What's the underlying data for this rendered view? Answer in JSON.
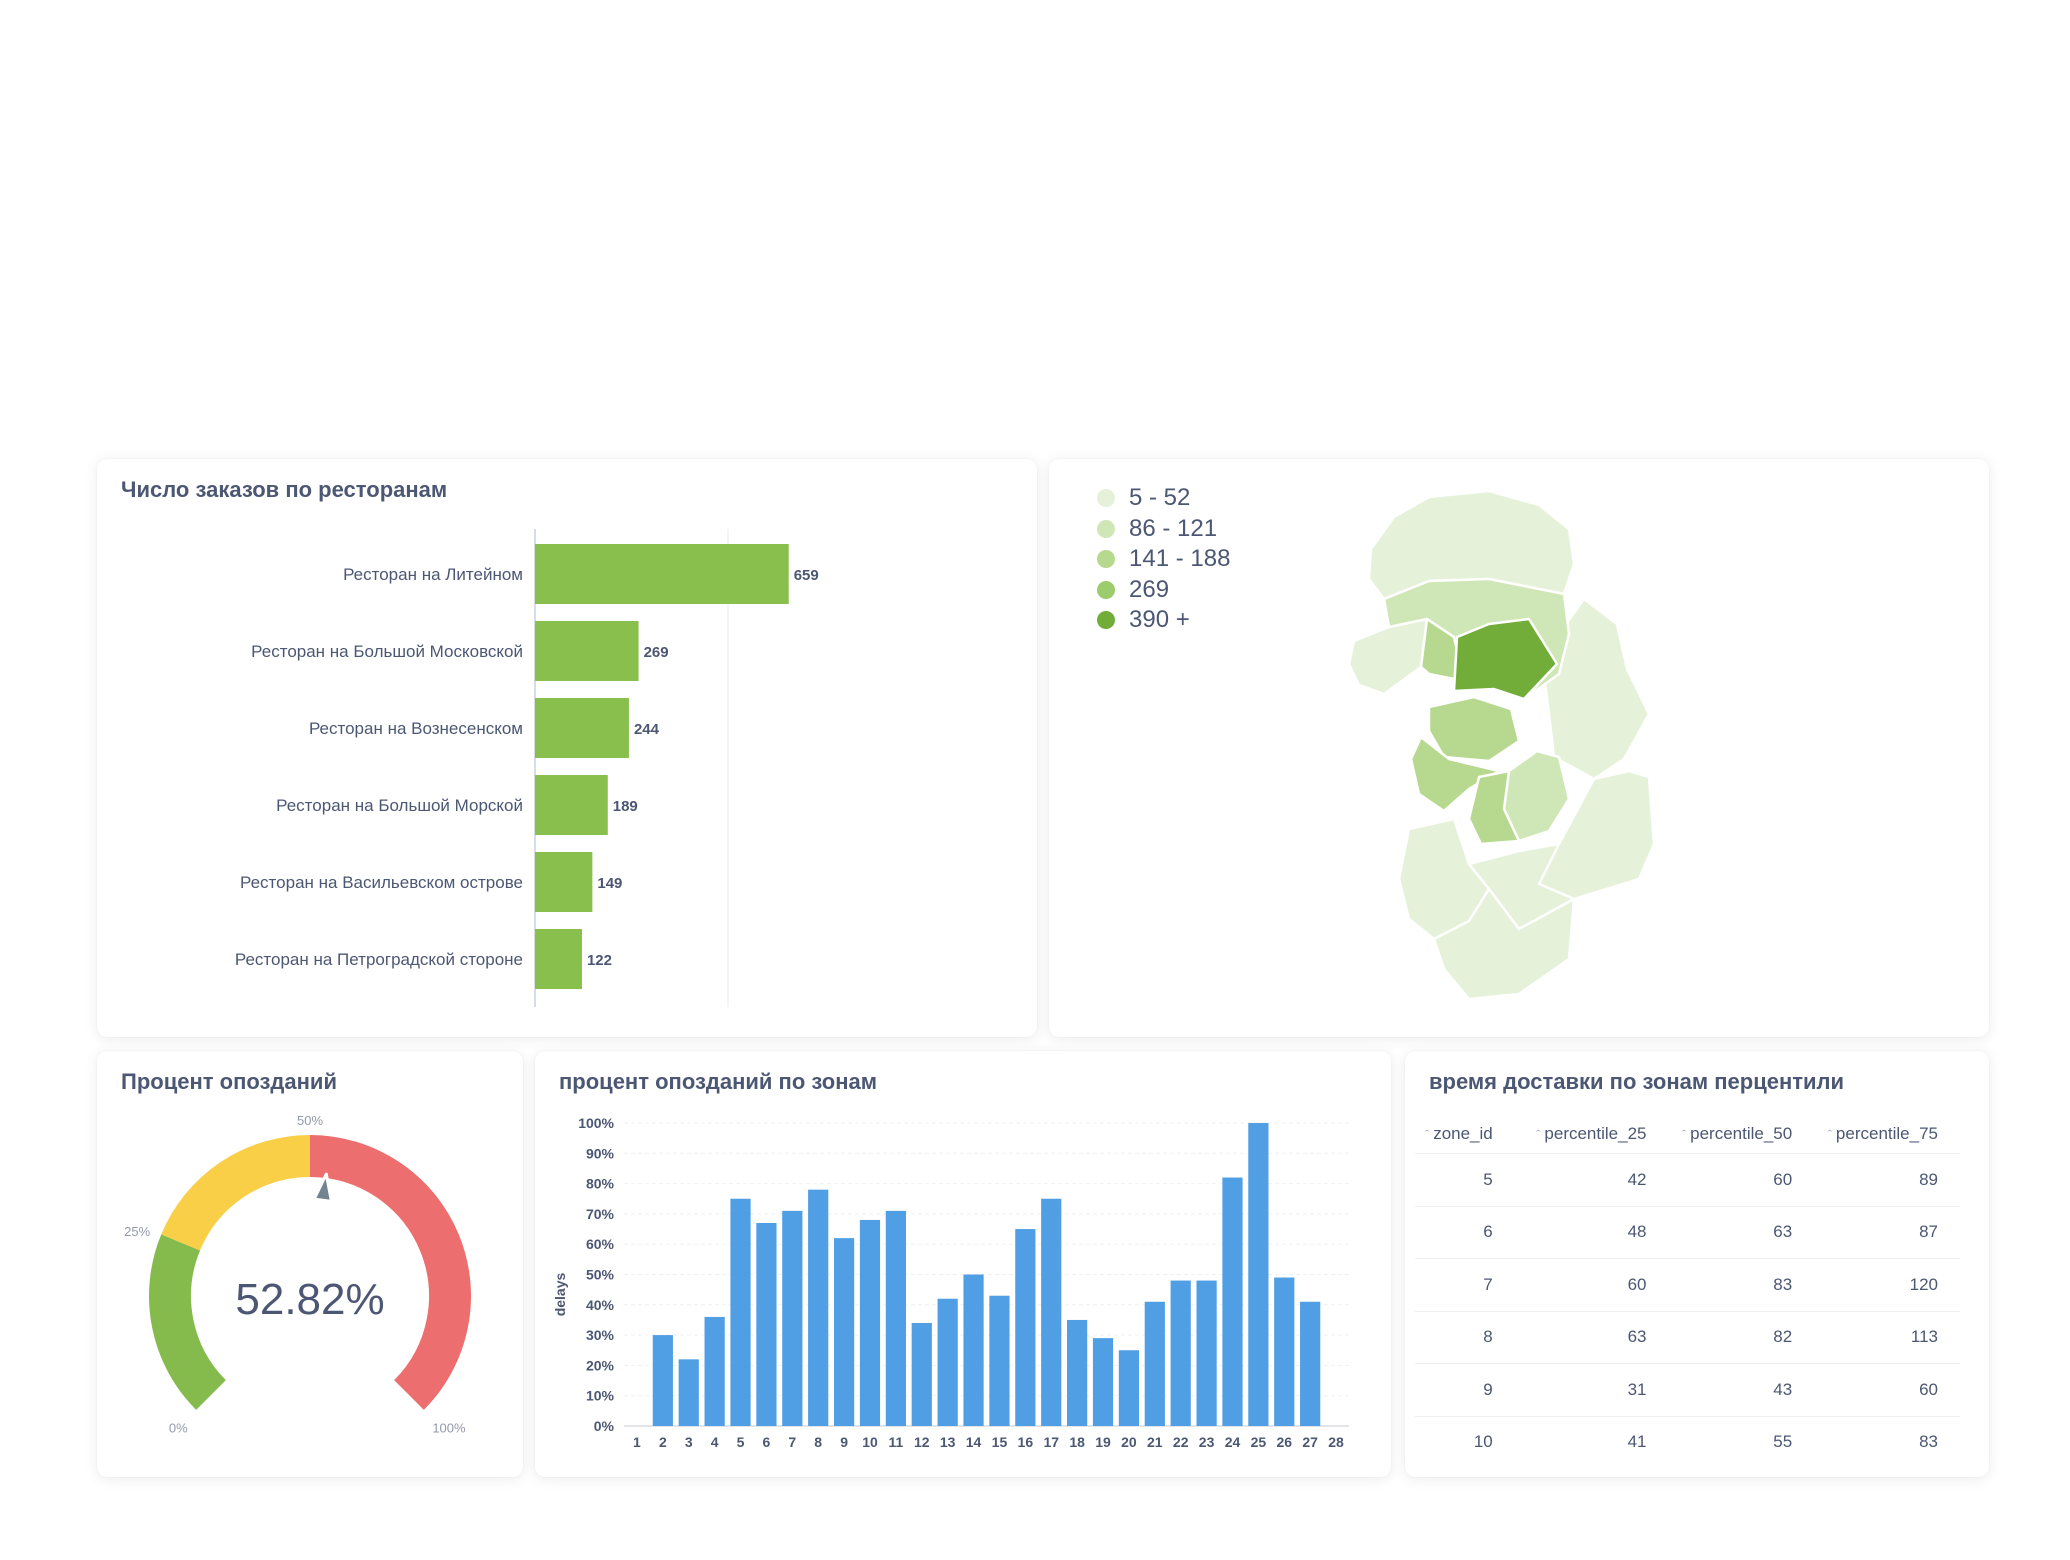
{
  "orders_card": {
    "title": "Число заказов по ресторанам",
    "bar_color": "#88bf4d",
    "chart_data": {
      "type": "bar",
      "orientation": "horizontal",
      "categories": [
        "Ресторан на Литейном",
        "Ресторан на Большой Московской",
        "Ресторан на Вознесенском",
        "Ресторан на Большой Морской",
        "Ресторан на Васильевском острове",
        "Ресторан на Петроградской стороне"
      ],
      "values": [
        659,
        269,
        244,
        189,
        149,
        122
      ],
      "xlim": [
        0,
        1000
      ],
      "grid": true
    }
  },
  "map_card": {
    "legend": [
      {
        "label": "5 - 52",
        "color": "#e5f1d8"
      },
      {
        "label": "86 - 121",
        "color": "#cfe6b7"
      },
      {
        "label": "141 - 188",
        "color": "#b6d98f"
      },
      {
        "label": "269",
        "color": "#9ccc6c"
      },
      {
        "label": "390 +",
        "color": "#72ad3a"
      }
    ]
  },
  "gauge_card": {
    "title": "Процент опозданий",
    "value_text": "52.82%",
    "chart_data": {
      "type": "gauge",
      "value": 52.82,
      "min": 0,
      "max": 100,
      "segments": [
        {
          "from": 0,
          "to": 25,
          "color": "#84bb4c"
        },
        {
          "from": 25,
          "to": 50,
          "color": "#f9cf48"
        },
        {
          "from": 50,
          "to": 100,
          "color": "#ed6e6e"
        }
      ],
      "tick_labels": [
        "0%",
        "25%",
        "50%",
        "100%"
      ]
    }
  },
  "delays_card": {
    "title": "процент опозданий по зонам",
    "bar_color": "#509ee3",
    "chart_data": {
      "type": "bar",
      "categories": [
        "1",
        "2",
        "3",
        "4",
        "5",
        "6",
        "7",
        "8",
        "9",
        "10",
        "11",
        "12",
        "13",
        "14",
        "15",
        "16",
        "17",
        "18",
        "19",
        "20",
        "21",
        "22",
        "23",
        "24",
        "25",
        "26",
        "27",
        "28"
      ],
      "values": [
        0,
        30,
        22,
        36,
        75,
        67,
        71,
        78,
        62,
        68,
        71,
        34,
        42,
        50,
        43,
        65,
        75,
        35,
        29,
        25,
        41,
        48,
        48,
        82,
        100,
        49,
        41,
        0
      ],
      "ylim": [
        0,
        100
      ],
      "yticks": [
        "0%",
        "10%",
        "20%",
        "30%",
        "40%",
        "50%",
        "60%",
        "70%",
        "80%",
        "90%",
        "100%"
      ],
      "ylabel": "delays",
      "xlabel": "",
      "grid": true
    }
  },
  "percentile_card": {
    "title": "время доставки по зонам перцентили",
    "columns": [
      "zone_id",
      "percentile_25",
      "percentile_50",
      "percentile_75"
    ],
    "rows": [
      [
        "5",
        "42",
        "60",
        "89"
      ],
      [
        "6",
        "48",
        "63",
        "87"
      ],
      [
        "7",
        "60",
        "83",
        "120"
      ],
      [
        "8",
        "63",
        "82",
        "113"
      ],
      [
        "9",
        "31",
        "43",
        "60"
      ],
      [
        "10",
        "41",
        "55",
        "83"
      ]
    ]
  }
}
